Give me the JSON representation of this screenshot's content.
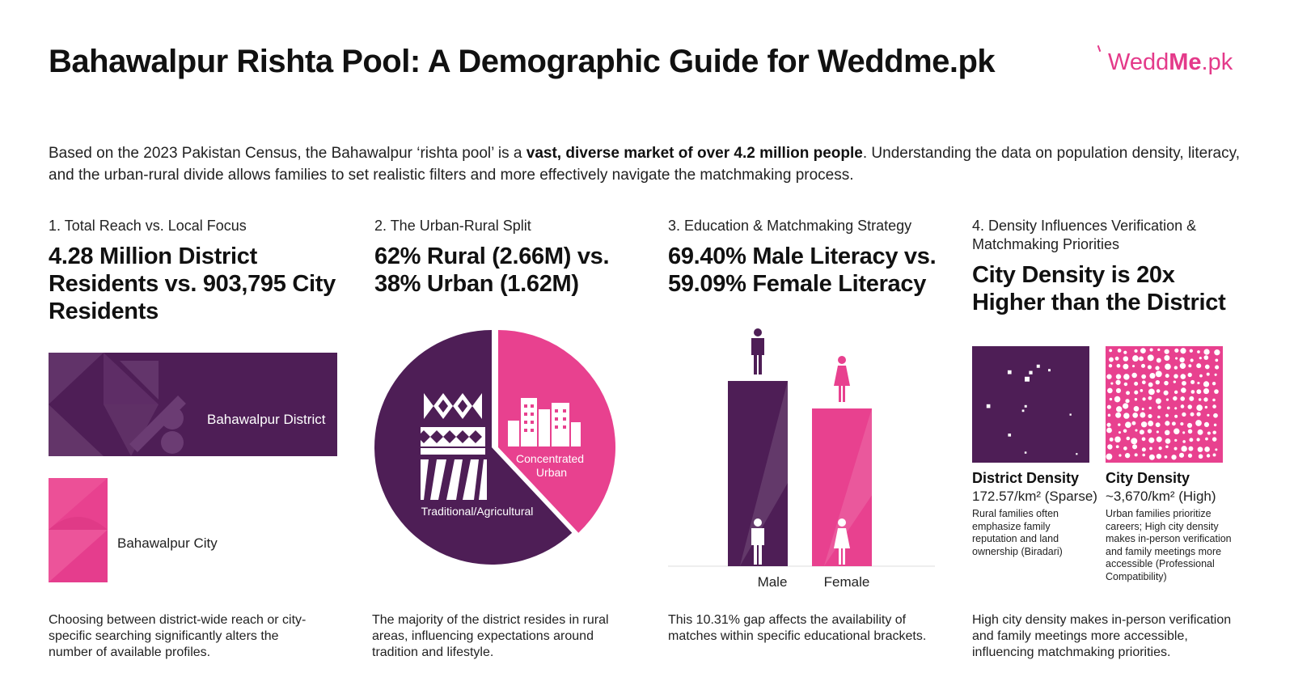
{
  "header": {
    "title": "Bahawalpur Rishta Pool: A Demographic Guide for Weddme.pk",
    "logo_prefix": "Wedd",
    "logo_bold": "Me",
    "logo_suffix": ".pk"
  },
  "intro": {
    "part1": "Based on the 2023 Pakistan Census, the Bahawalpur ‘rishta pool’ is a ",
    "bold": "vast, diverse market of over 4.2 million people",
    "part2": ". Understanding the data on population density, literacy, and the urban-rural divide allows families to set realistic filters and more effectively navigate the matchmaking process."
  },
  "sections": [
    {
      "label": "1. Total Reach vs. Local Focus",
      "headline": "4.28 Million District Residents vs. 903,795 City Residents",
      "footer": "Choosing between district-wide reach or city-specific searching significantly alters the number of available profiles."
    },
    {
      "label": "2. The Urban-Rural Split",
      "headline": "62% Rural (2.66M) vs. 38% Urban (1.62M)",
      "footer": "The majority of the district resides in rural areas, influencing expectations around tradition and lifestyle."
    },
    {
      "label": "3. Education & Matchmaking Strategy",
      "headline": "69.40% Male Literacy vs. 59.09% Female Literacy",
      "footer": "This 10.31% gap affects the availability of matches within specific educational brackets."
    },
    {
      "label": "4. Density Influences Verification & Matchmaking Priorities",
      "headline": "City Density is 20x Higher than the District",
      "footer": "High city density makes in-person verification and family meetings more accessible, influencing matchmaking priorities."
    }
  ],
  "colors": {
    "purple": "#4e1e56",
    "pink": "#e8418f",
    "text": "#111111"
  },
  "chart_data": [
    {
      "type": "bar",
      "orientation": "horizontal",
      "categories": [
        "Bahawalpur District",
        "Bahawalpur City"
      ],
      "values": [
        4280000,
        903795
      ]
    },
    {
      "type": "pie",
      "labels": [
        "Traditional/Agricultural",
        "Concentrated Urban"
      ],
      "values": [
        62,
        38
      ],
      "colors": [
        "#4e1e56",
        "#e8418f"
      ]
    },
    {
      "type": "bar",
      "categories": [
        "Male",
        "Female"
      ],
      "values": [
        69.4,
        59.09
      ],
      "colors": [
        "#4e1e56",
        "#e8418f"
      ],
      "ylim": [
        0,
        100
      ]
    },
    {
      "type": "table",
      "items": [
        {
          "title": "District Density",
          "value": "172.57/km² (Sparse)",
          "note": "Rural families often emphasize family reputation and land ownership (Biradari)",
          "color": "#4e1e56"
        },
        {
          "title": "City Density",
          "value": "~3,670/km² (High)",
          "note": "Urban families prioritize careers; High city density makes in-person verification and family meetings more accessible (Professional Compatibility)",
          "color": "#e8418f"
        }
      ]
    }
  ]
}
